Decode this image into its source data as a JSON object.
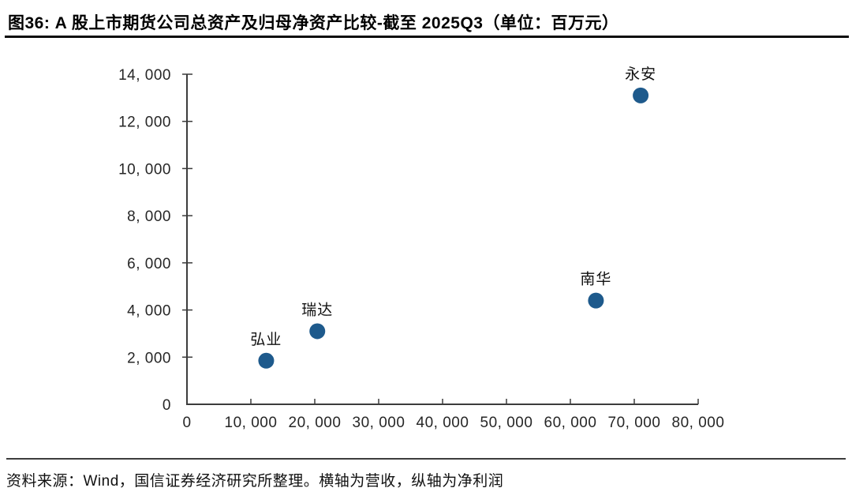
{
  "figure": {
    "title": "图36: A 股上市期货公司总资产及归母净资产比较-截至 2025Q3（单位：百万元）",
    "source_note": "资料来源：Wind，国信证券经济研究所整理。横轴为营收，纵轴为净利润"
  },
  "colors": {
    "point": "#1e5a8c",
    "axis": "#3c3c3c",
    "tick_text": "#262626",
    "label_text": "#111111"
  },
  "chart_data": {
    "type": "scatter",
    "title": "A 股上市期货公司总资产及归母净资产比较-截至 2025Q3",
    "unit": "百万元",
    "xlabel": "营收",
    "ylabel": "净利润",
    "xlim": [
      0,
      80000
    ],
    "xtick_step": 10000,
    "ylim": [
      0,
      14000
    ],
    "ytick_step": 2000,
    "grid": false,
    "legend": false,
    "points": [
      {
        "name": "弘业",
        "x": 12400,
        "y": 1850
      },
      {
        "name": "瑞达",
        "x": 20400,
        "y": 3100
      },
      {
        "name": "南华",
        "x": 64000,
        "y": 4400
      },
      {
        "name": "永安",
        "x": 71000,
        "y": 13100
      }
    ]
  }
}
